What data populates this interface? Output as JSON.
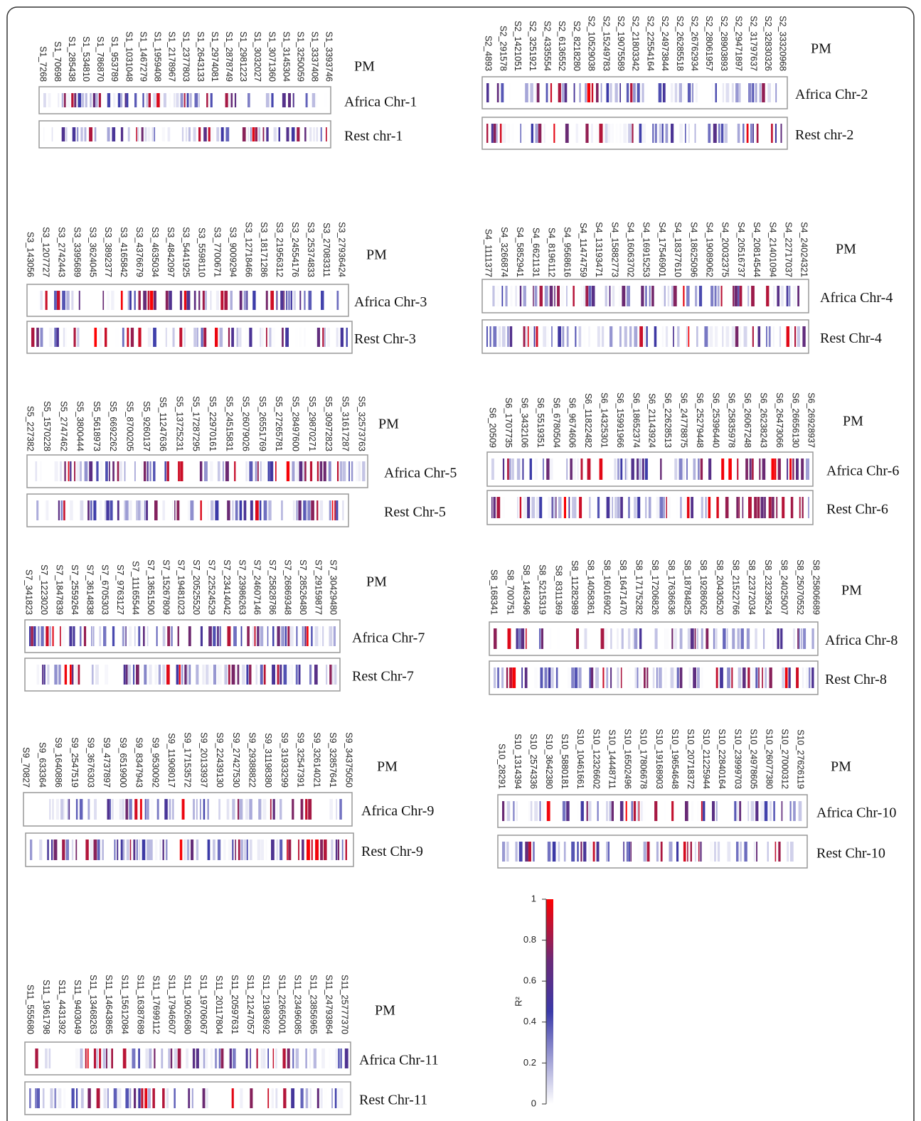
{
  "panels": [
    {
      "markers": [
        "S1_7268",
        "S1_70698",
        "S1_285438",
        "S1_534810",
        "S1_786870",
        "S1_953789",
        "S1_1031048",
        "S1_1467279",
        "S1_1959408",
        "S1_2178967",
        "S1_2377803",
        "S1_2643133",
        "S1_2974081",
        "S1_2878749",
        "S1_2981223",
        "S1_3032027",
        "S1_3071360",
        "S1_3145304",
        "S1_3250059",
        "S1_3337408",
        "S1_3393746"
      ],
      "pm": "PM",
      "rows": [
        "Africa Chr-1",
        "Rest chr-1"
      ]
    },
    {
      "markers": [
        "S2_4893",
        "S2_291578",
        "S2_1421051",
        "S2_3251921",
        "S2_4335554",
        "S2_6136552",
        "S2_8218280",
        "S2_10529038",
        "S2_15249783",
        "S2_19075589",
        "S2_21803342",
        "S2_22554164",
        "S2_24973844",
        "S2_26285518",
        "S2_26762934",
        "S2_28061957",
        "S2_28903893",
        "S2_29471897",
        "S2_31797637",
        "S2_32830326",
        "S2_33320968"
      ],
      "pm": "PM",
      "rows": [
        "Africa Chr-2",
        "Rest chr-2"
      ]
    },
    {
      "markers": [
        "S3_143056",
        "S3_1207727",
        "S3_2742443",
        "S3_3395689",
        "S3_3624045",
        "S3_3892377",
        "S3_4165842",
        "S3_4376679",
        "S3_4635034",
        "S3_4842097",
        "S3_5441925",
        "S3_5598110",
        "S3_7700671",
        "S3_9009294",
        "S3_12718466",
        "S3_18171286",
        "S3_21956312",
        "S3_24554176",
        "S3_25374833",
        "S3_27083311",
        "S3_27936424"
      ],
      "pm": "PM",
      "rows": [
        "Africa Chr-3",
        "Rest Chr-3"
      ]
    },
    {
      "markers": [
        "S4_1111377",
        "S4_3266874",
        "S4_5852941",
        "S4_6621131",
        "S4_8196112",
        "S4_9568616",
        "S4_11474759",
        "S4_13193471",
        "S4_15882773",
        "S4_16063702",
        "S4_16915253",
        "S4_17546901",
        "S4_18377610",
        "S4_18625096",
        "S4_19089062",
        "S4_20032375",
        "S4_20516737",
        "S4_20814544",
        "S4_21401094",
        "S4_22717037",
        "S4_24024321"
      ],
      "pm": "PM",
      "rows": [
        "Africa Chr-4",
        "Rest Chr-4"
      ]
    },
    {
      "markers": [
        "S5_227382",
        "S5_1570228",
        "S5_2747462",
        "S5_3800444",
        "S5_5618973",
        "S5_6692262",
        "S5_8700205",
        "S5_9260137",
        "S5_11247636",
        "S5_13725231",
        "S5_17287295",
        "S5_22970161",
        "S5_24515831",
        "S5_26079026",
        "S5_26551769",
        "S5_27265781",
        "S5_28497600",
        "S5_29870271",
        "S5_30972823",
        "S5_31617287",
        "S5_32573763"
      ],
      "pm": "PM",
      "rows": [
        "Africa Chr-5",
        "Rest Chr-5"
      ]
    },
    {
      "markers": [
        "S6_20509",
        "S6_1707735",
        "S6_3432106",
        "S6_5519351",
        "S6_6780504",
        "S6_9674606",
        "S6_11822482",
        "S6_14325301",
        "S6_15991966",
        "S6_18652374",
        "S6_21143924",
        "S6_22628513",
        "S6_24778875",
        "S6_25279448",
        "S6_25396440",
        "S6_25835978",
        "S6_26067248",
        "S6_26238243",
        "S6_26473066",
        "S6_26656130",
        "S6_26928937"
      ],
      "pm": "PM",
      "rows": [
        "Africa Chr-6",
        "Rest Chr-6"
      ]
    },
    {
      "markers": [
        "S7_341823",
        "S7_1223020",
        "S7_1847839",
        "S7_2559264",
        "S7_3614838",
        "S7_6705303",
        "S7_9763127",
        "S7_11165544",
        "S7_13651500",
        "S7_15267809",
        "S7_19481023",
        "S7_20525520",
        "S7_22524529",
        "S7_23414042",
        "S7_23986263",
        "S7_24607146",
        "S7_25828786",
        "S7_26869348",
        "S7_28526480",
        "S7_29159877",
        "S7_30429480"
      ],
      "pm": "PM",
      "rows": [
        "Africa Chr-7",
        "Rest Chr-7"
      ]
    },
    {
      "markers": [
        "S8_168341",
        "S8_700751",
        "S8_1463496",
        "S8_5215319",
        "S8_8311369",
        "S8_11282989",
        "S8_14058361",
        "S8_16016902",
        "S8_16471470",
        "S8_17175282",
        "S8_17206826",
        "S8_17636636",
        "S8_18784825",
        "S8_19286062",
        "S8_20430520",
        "S8_21522766",
        "S8_22372034",
        "S8_23239524",
        "S8_24025007",
        "S8_25070552",
        "S8_25806689"
      ],
      "pm": "PM",
      "rows": [
        "Africa Chr-8",
        "Rest Chr-8"
      ]
    },
    {
      "markers": [
        "S9_70827",
        "S9_633364",
        "S9_1640886",
        "S9_2547519",
        "S9_3676303",
        "S9_4737897",
        "S9_6519900",
        "S9_8347943",
        "S9_9530092",
        "S9_11908017",
        "S9_17153572",
        "S9_20133937",
        "S9_22439130",
        "S9_27427530",
        "S9_29388822",
        "S9_31198380",
        "S9_31933299",
        "S9_32547391",
        "S9_32614021",
        "S9_32857641",
        "S9_34375050"
      ],
      "pm": "PM",
      "rows": [
        "Africa Chr-9",
        "Rest Chr-9"
      ]
    },
    {
      "markers": [
        "S10_28291",
        "S10_1314394",
        "S10_2574336",
        "S10_3642380",
        "S10_5880181",
        "S10_10461661",
        "S10_12326602",
        "S10_14448711",
        "S10_16502496",
        "S10_17806678",
        "S10_19168903",
        "S10_19654648",
        "S10_20718372",
        "S10_21225944",
        "S10_22840164",
        "S10_23999703",
        "S10_24978605",
        "S10_26077380",
        "S10_27000312",
        "S10_27626119"
      ],
      "pm": "PM",
      "rows": [
        "Africa Chr-10",
        "Rest Chr-10"
      ]
    },
    {
      "markers": [
        "S11_555680",
        "S11_1961798",
        "S11_4431392",
        "S11_9403049",
        "S11_13468263",
        "S11_14643865",
        "S11_15612084",
        "S11_16387689",
        "S11_17699112",
        "S11_17946607",
        "S11_19026680",
        "S11_19706067",
        "S11_20117804",
        "S11_20597631",
        "S11_21247057",
        "S11_21983692",
        "S11_22665001",
        "S11_23496085",
        "S11_23856965",
        "S11_24793864",
        "S11_25777370"
      ],
      "pm": "PM",
      "rows": [
        "Africa Chr-11",
        "Rest Chr-11"
      ]
    }
  ],
  "chart_data": {
    "type": "colorbar",
    "ylabel": "R²",
    "ylim": [
      0,
      1
    ],
    "yticks": [
      0,
      0.2,
      0.4,
      0.6,
      0.8,
      1
    ]
  }
}
